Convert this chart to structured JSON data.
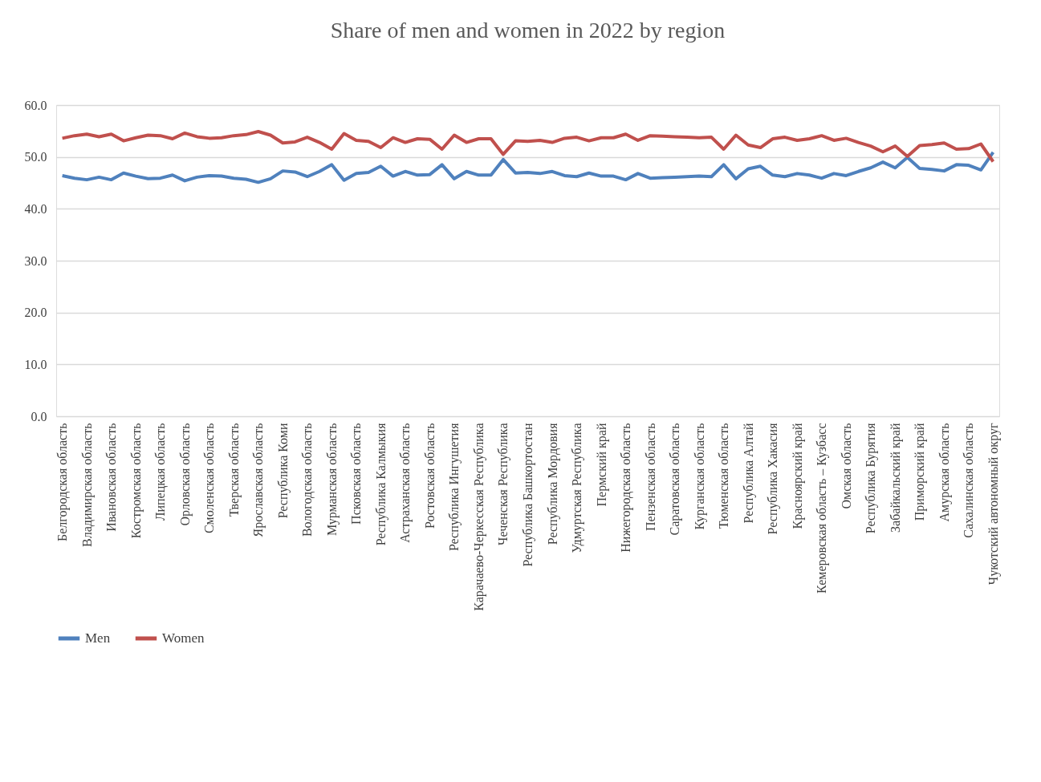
{
  "chart_data": {
    "type": "line",
    "title": "Share of men and women in 2022 by region",
    "categories": [
      "Белгородская область",
      null,
      "Владимирская область",
      null,
      "Ивановская область",
      null,
      "Костромская область",
      null,
      "Липецкая область",
      null,
      "Орловская область",
      null,
      "Смоленская область",
      null,
      "Тверская область",
      null,
      "Ярославская область",
      null,
      "Республика Коми",
      null,
      "Вологодская область",
      null,
      "Мурманская область",
      null,
      "Псковская область",
      null,
      "Республика Калмыкия",
      null,
      "Астраханская область",
      null,
      "Ростовская область",
      null,
      "Республика Ингушетия",
      null,
      "Карачаево-Черкесская Республика",
      null,
      "Чеченская Республика",
      null,
      "Республика Башкортостан",
      null,
      "Республика Мордовия",
      null,
      "Удмуртская Республика",
      null,
      "Пермский край",
      null,
      "Нижегородская область",
      null,
      "Пензенская область",
      null,
      "Саратовская область",
      null,
      "Курганская область",
      null,
      "Тюменская область",
      null,
      "Республика Алтай",
      null,
      "Республика Хакасия",
      null,
      "Красноярский край",
      null,
      "Кемеровская область – Кузбасс",
      null,
      "Омская область",
      null,
      "Республика Бурятия",
      null,
      "Забайкальский край",
      null,
      "Приморский край",
      null,
      "Амурская область",
      null,
      "Сахалинская область",
      null,
      "Чукотский автономный округ"
    ],
    "series": [
      {
        "name": "Men",
        "color": "#4f81bd",
        "values": [
          46.4,
          45.9,
          45.6,
          46.1,
          45.6,
          46.9,
          46.3,
          45.8,
          45.9,
          46.5,
          45.4,
          46.1,
          46.4,
          46.3,
          45.9,
          45.7,
          45.1,
          45.8,
          47.3,
          47.1,
          46.2,
          47.2,
          48.5,
          45.5,
          46.8,
          47.0,
          48.2,
          46.3,
          47.2,
          46.5,
          46.6,
          48.5,
          45.8,
          47.2,
          46.5,
          46.5,
          49.5,
          46.9,
          47.0,
          46.8,
          47.2,
          46.4,
          46.2,
          46.9,
          46.3,
          46.3,
          45.6,
          46.8,
          45.9,
          46.0,
          46.1,
          46.2,
          46.3,
          46.2,
          48.5,
          45.8,
          47.7,
          48.2,
          46.5,
          46.2,
          46.8,
          46.5,
          45.9,
          46.8,
          46.4,
          47.2,
          47.9,
          49.0,
          47.9,
          49.9,
          47.8,
          47.6,
          47.3,
          48.5,
          48.4,
          47.5,
          50.9
        ]
      },
      {
        "name": "Women",
        "color": "#c0504d",
        "values": [
          53.6,
          54.1,
          54.4,
          53.9,
          54.4,
          53.1,
          53.7,
          54.2,
          54.1,
          53.5,
          54.6,
          53.9,
          53.6,
          53.7,
          54.1,
          54.3,
          54.9,
          54.2,
          52.7,
          52.9,
          53.8,
          52.8,
          51.5,
          54.5,
          53.2,
          53.0,
          51.8,
          53.7,
          52.8,
          53.5,
          53.4,
          51.5,
          54.2,
          52.8,
          53.5,
          53.5,
          50.5,
          53.1,
          53.0,
          53.2,
          52.8,
          53.6,
          53.8,
          53.1,
          53.7,
          53.7,
          54.4,
          53.2,
          54.1,
          54.0,
          53.9,
          53.8,
          53.7,
          53.8,
          51.5,
          54.2,
          52.3,
          51.8,
          53.5,
          53.8,
          53.2,
          53.5,
          54.1,
          53.2,
          53.6,
          52.8,
          52.1,
          51.0,
          52.1,
          50.1,
          52.2,
          52.4,
          52.7,
          51.5,
          51.6,
          52.5,
          49.1
        ]
      }
    ],
    "ylim": [
      0,
      60
    ],
    "yticks": [
      {
        "value": 0,
        "label": "0.0"
      },
      {
        "value": 10,
        "label": "10.0"
      },
      {
        "value": 20,
        "label": "20.0"
      },
      {
        "value": 30,
        "label": "30.0"
      },
      {
        "value": 40,
        "label": "40.0"
      },
      {
        "value": 50,
        "label": "50.0"
      },
      {
        "value": 60,
        "label": "60.0"
      }
    ],
    "grid": "y",
    "legend": "bottom",
    "marker": "none",
    "line_style": "solid"
  }
}
